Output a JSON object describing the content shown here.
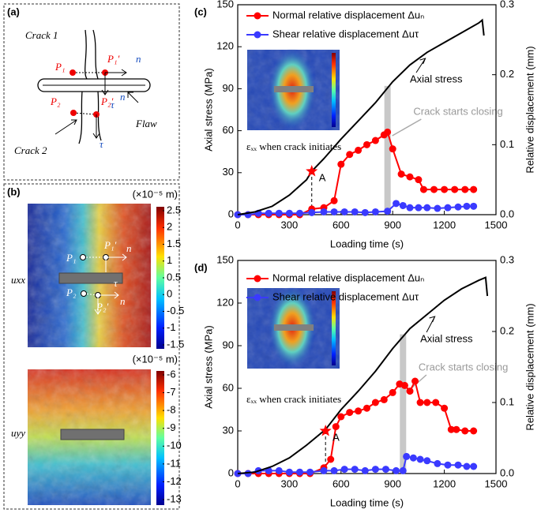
{
  "chart_data": [
    {
      "type": "line",
      "panel_label": "(c)",
      "xlabel": "Loading time (s)",
      "ylabel": "Axial stress (MPa)",
      "y2label": "Relative displacement (mm)",
      "xlim": [
        0,
        1500
      ],
      "xticks": [
        0,
        300,
        600,
        900,
        1200,
        1500
      ],
      "ylim": [
        0,
        150
      ],
      "yticks": [
        0,
        30,
        60,
        90,
        120,
        150
      ],
      "y2lim": [
        0,
        0.3
      ],
      "y2ticks": [
        {
          "value": 0,
          "label": "0.0"
        },
        0.1,
        0.2,
        0.3
      ],
      "series": [
        {
          "name": "Normal relative displacement Δuₙ",
          "color": "#ff0000",
          "axis": "y2",
          "markers": true,
          "x": [
            0,
            60,
            120,
            180,
            240,
            300,
            360,
            430,
            500,
            560,
            600,
            650,
            700,
            750,
            800,
            850,
            870,
            900,
            950,
            1000,
            1050,
            1080,
            1140,
            1200,
            1260,
            1320,
            1370
          ],
          "values": [
            0,
            0,
            0,
            0,
            0,
            0,
            0,
            0.008,
            0.01,
            0.02,
            0.072,
            0.086,
            0.092,
            0.1,
            0.106,
            0.114,
            0.118,
            0.094,
            0.058,
            0.054,
            0.05,
            0.036,
            0.036,
            0.036,
            0.036,
            0.036,
            0.036
          ]
        },
        {
          "name": "Shear relative displacement Δuτ",
          "color": "#3a3aff",
          "axis": "y2",
          "markers": true,
          "x": [
            0,
            60,
            120,
            180,
            240,
            300,
            360,
            430,
            500,
            560,
            620,
            680,
            740,
            800,
            870,
            920,
            960,
            1000,
            1050,
            1100,
            1160,
            1220,
            1280,
            1330,
            1370
          ],
          "values": [
            0,
            0,
            0.002,
            0.002,
            0.002,
            0.002,
            0.002,
            0.003,
            0.004,
            0.004,
            0.004,
            0.004,
            0.003,
            0.004,
            0.005,
            0.016,
            0.013,
            0.01,
            0.01,
            0.01,
            0.009,
            0.01,
            0.011,
            0.012,
            0.012
          ]
        },
        {
          "name": "Axial stress",
          "color": "#000000",
          "axis": "y",
          "markers": false,
          "x": [
            0,
            100,
            200,
            300,
            400,
            430,
            500,
            600,
            700,
            800,
            900,
            1000,
            1100,
            1200,
            1300,
            1400,
            1420,
            1430
          ],
          "values": [
            0,
            2,
            6,
            14,
            25,
            31,
            40,
            54,
            67,
            80,
            95,
            107,
            116,
            123,
            130,
            137,
            139,
            128
          ]
        }
      ],
      "marker": {
        "label": "A",
        "x": 430,
        "y": 31
      },
      "band": {
        "x": 870,
        "y": 92,
        "label": "Crack starts closing"
      },
      "inset_caption": "εₓₓ when crack initiates"
    },
    {
      "type": "line",
      "panel_label": "(d)",
      "xlabel": "Loading time (s)",
      "ylabel": "Axial stress (MPa)",
      "y2label": "Relative displacement (mm)",
      "xlim": [
        0,
        1500
      ],
      "xticks": [
        0,
        300,
        600,
        900,
        1200,
        1500
      ],
      "ylim": [
        0,
        150
      ],
      "yticks": [
        0,
        30,
        60,
        90,
        120,
        150
      ],
      "y2lim": [
        0,
        0.3
      ],
      "y2ticks": [
        {
          "value": 0,
          "label": "0.0"
        },
        0.1,
        0.2,
        0.3
      ],
      "series": [
        {
          "name": "Normal relative displacement Δuₙ",
          "color": "#ff0000",
          "axis": "y2",
          "markers": true,
          "x": [
            0,
            60,
            120,
            180,
            240,
            300,
            360,
            420,
            500,
            540,
            570,
            600,
            650,
            700,
            750,
            800,
            850,
            900,
            940,
            970,
            1000,
            1030,
            1060,
            1100,
            1150,
            1200,
            1240,
            1270,
            1320,
            1370
          ],
          "values": [
            0,
            0,
            0,
            0,
            0,
            0,
            0,
            0,
            0.008,
            0.02,
            0.066,
            0.08,
            0.086,
            0.088,
            0.092,
            0.1,
            0.104,
            0.114,
            0.126,
            0.124,
            0.116,
            0.13,
            0.1,
            0.1,
            0.1,
            0.092,
            0.062,
            0.062,
            0.06,
            0.06
          ]
        },
        {
          "name": "Shear relative displacement Δuτ",
          "color": "#3a3aff",
          "axis": "y2",
          "markers": true,
          "x": [
            0,
            60,
            120,
            180,
            240,
            300,
            360,
            420,
            500,
            560,
            620,
            680,
            740,
            800,
            860,
            920,
            960,
            980,
            1020,
            1060,
            1100,
            1160,
            1220,
            1280,
            1330,
            1370
          ],
          "values": [
            0,
            0,
            0.004,
            0.004,
            0.004,
            0.002,
            0.002,
            0.002,
            0.004,
            0.004,
            0.006,
            0.006,
            0.004,
            0.006,
            0.006,
            0.004,
            0.004,
            0.024,
            0.022,
            0.02,
            0.018,
            0.014,
            0.012,
            0.012,
            0.01,
            0.01
          ]
        },
        {
          "name": "Axial stress",
          "color": "#000000",
          "axis": "y",
          "markers": false,
          "x": [
            0,
            100,
            200,
            300,
            400,
            510,
            600,
            700,
            800,
            900,
            1000,
            1100,
            1200,
            1300,
            1400,
            1440,
            1450
          ],
          "values": [
            0,
            1,
            5,
            11,
            20,
            31,
            45,
            58,
            72,
            88,
            102,
            112,
            122,
            130,
            136,
            138,
            125
          ]
        }
      ],
      "marker": {
        "label": "A",
        "x": 510,
        "y": 30
      },
      "band": {
        "x": 960,
        "y": 98,
        "label": "Crack starts closing"
      },
      "inset_caption": "εₓₓ when crack initiates"
    }
  ],
  "panel_a": {
    "label": "(a)",
    "crack1": "Crack 1",
    "crack2": "Crack 2",
    "flaw": "Flaw",
    "p1": "P₁",
    "p1p": "P₁′",
    "p2": "P₂",
    "p2p": "P₂′",
    "n1": "n",
    "n2": "n",
    "tau1": "τ",
    "tau2": "τ"
  },
  "panel_b": {
    "label": "(b)",
    "unit": "(×10⁻⁵ m)",
    "uxx": "uxx",
    "uyy": "uyy",
    "p1": "P₁",
    "p1p": "P₁′",
    "p2": "P₂",
    "p2p": "P₂′",
    "n1": "n",
    "n2": "n",
    "tau": "τ",
    "uxx_ticks": [
      2.5,
      2,
      1.5,
      1,
      0.5,
      0,
      -0.5,
      -1,
      -1.5
    ],
    "uyy_ticks": [
      -6,
      -7,
      -8,
      -9,
      -10,
      -11,
      -12,
      -13
    ]
  }
}
